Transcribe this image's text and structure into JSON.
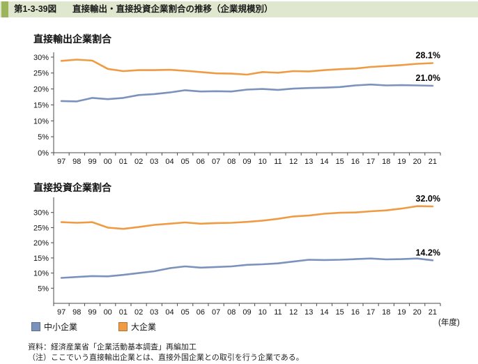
{
  "header": {
    "fig_no": "第1-3-39図",
    "title": "直接輸出・直接投資企業割合の推移（企業規模別）"
  },
  "chart_data": [
    {
      "type": "line",
      "title": "直接輸出企業割合",
      "x": [
        "97",
        "98",
        "99",
        "00",
        "01",
        "02",
        "03",
        "04",
        "05",
        "06",
        "07",
        "08",
        "09",
        "10",
        "11",
        "12",
        "13",
        "14",
        "15",
        "16",
        "17",
        "18",
        "19",
        "20",
        "21"
      ],
      "xlabel": "(年度)",
      "ylabel": "%",
      "ylim": [
        0,
        31.5
      ],
      "yticks": [
        0,
        5,
        10,
        15,
        20,
        25,
        30
      ],
      "grid": false,
      "legend_position": "bottom",
      "series": [
        {
          "name": "中小企業",
          "color": "#7b92bc",
          "end_label": "21.0%",
          "values": [
            16.2,
            16.1,
            17.2,
            16.8,
            17.2,
            18.1,
            18.4,
            18.9,
            19.6,
            19.2,
            19.3,
            19.2,
            19.8,
            20.0,
            19.7,
            20.1,
            20.3,
            20.4,
            20.6,
            21.1,
            21.4,
            21.1,
            21.2,
            21.1,
            21.0
          ]
        },
        {
          "name": "大企業",
          "color": "#ef9b43",
          "end_label": "28.1%",
          "values": [
            28.8,
            29.2,
            28.9,
            26.3,
            25.6,
            25.9,
            25.9,
            26.0,
            25.7,
            25.3,
            24.9,
            24.8,
            24.5,
            25.3,
            25.1,
            25.6,
            25.5,
            25.9,
            26.2,
            26.4,
            26.9,
            27.2,
            27.5,
            27.9,
            28.1
          ]
        }
      ]
    },
    {
      "type": "line",
      "title": "直接投資企業割合",
      "x": [
        "97",
        "98",
        "99",
        "00",
        "01",
        "02",
        "03",
        "04",
        "05",
        "06",
        "07",
        "08",
        "09",
        "10",
        "11",
        "12",
        "13",
        "14",
        "15",
        "16",
        "17",
        "18",
        "19",
        "20",
        "21"
      ],
      "xlabel": "(年度)",
      "ylabel": "%",
      "ylim": [
        0,
        35
      ],
      "yticks": [
        5,
        10,
        15,
        20,
        25,
        30
      ],
      "grid": false,
      "legend_position": "bottom",
      "series": [
        {
          "name": "中小企業",
          "color": "#7b92bc",
          "end_label": "14.2%",
          "values": [
            8.4,
            8.7,
            9.0,
            8.9,
            9.4,
            10.0,
            10.6,
            11.6,
            12.2,
            11.8,
            12.0,
            12.2,
            12.7,
            12.9,
            13.2,
            13.8,
            14.4,
            14.3,
            14.4,
            14.6,
            14.8,
            14.5,
            14.6,
            14.8,
            14.2
          ]
        },
        {
          "name": "大企業",
          "color": "#ef9b43",
          "end_label": "32.0%",
          "values": [
            26.8,
            26.6,
            26.8,
            25.0,
            24.6,
            25.2,
            25.9,
            26.3,
            26.7,
            26.3,
            26.5,
            26.6,
            26.9,
            27.3,
            27.9,
            28.7,
            29.0,
            29.6,
            29.9,
            30.0,
            30.4,
            30.7,
            31.3,
            32.1,
            32.0
          ]
        }
      ]
    }
  ],
  "x_axis_unit": "(年度)",
  "legend": {
    "items": [
      {
        "label": "中小企業",
        "color": "#7b92bc"
      },
      {
        "label": "大企業",
        "color": "#ef9b43"
      }
    ]
  },
  "footer": {
    "source": "資料：経済産業省「企業活動基本調査」再編加工",
    "note": "（注）ここでいう直接輸出企業とは、直接外国企業との取引を行う企業である。"
  }
}
